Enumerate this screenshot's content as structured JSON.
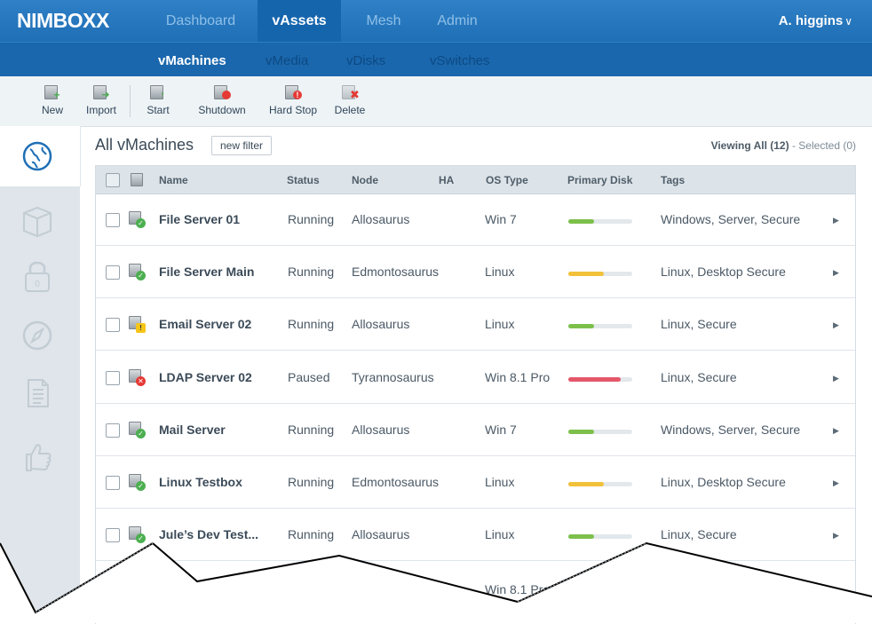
{
  "brand": "NIMBOXX",
  "nav": {
    "tabs": [
      "Dashboard",
      "vAssets",
      "Mesh",
      "Admin"
    ],
    "active": "vAssets",
    "user": "A. higgins"
  },
  "subnav": {
    "tabs": [
      "vMachines",
      "vMedia",
      "vDisks",
      "vSwitches"
    ],
    "active": "vMachines"
  },
  "toolbar": {
    "new": "New",
    "import": "Import",
    "start": "Start",
    "shutdown": "Shutdown",
    "hard_stop": "Hard Stop",
    "delete": "Delete"
  },
  "sidebar": {
    "icons": [
      "globe-icon",
      "box-icon",
      "lock-icon",
      "compass-icon",
      "document-icon",
      "thumbs-up-icon"
    ],
    "lock_counter": "0"
  },
  "content": {
    "title": "All vMachines",
    "filter_button": "new filter",
    "viewing_label": "Viewing All",
    "viewing_count": "(12)",
    "separator": "-",
    "selected": "Selected (0)"
  },
  "table": {
    "headers": [
      "Name",
      "Status",
      "Node",
      "HA",
      "OS Type",
      "Primary Disk",
      "Tags"
    ],
    "rows": [
      {
        "name": "File Server 01",
        "status": "Running",
        "node": "Allosaurus",
        "os": "Win 7",
        "disk": 0.4,
        "disk_color": "#7cc04b",
        "tags": "Windows, Server, Secure",
        "state": "ok"
      },
      {
        "name": "File Server Main",
        "status": "Running",
        "node": "Edmontosaurus",
        "os": "Linux",
        "disk": 0.55,
        "disk_color": "#f2c13a",
        "tags": "Linux, Desktop Secure",
        "state": "ok"
      },
      {
        "name": "Email Server 02",
        "status": "Running",
        "node": "Allosaurus",
        "os": "Linux",
        "disk": 0.4,
        "disk_color": "#7cc04b",
        "tags": "Linux, Secure",
        "state": "warning"
      },
      {
        "name": "LDAP Server 02",
        "status": "Paused",
        "node": "Tyrannosaurus",
        "os": "Win 8.1 Pro",
        "disk": 0.82,
        "disk_color": "#e5576a",
        "tags": "Linux, Secure",
        "state": "error"
      },
      {
        "name": "Mail Server",
        "status": "Running",
        "node": "Allosaurus",
        "os": "Win 7",
        "disk": 0.4,
        "disk_color": "#7cc04b",
        "tags": "Windows, Server, Secure",
        "state": "ok"
      },
      {
        "name": "Linux Testbox",
        "status": "Running",
        "node": "Edmontosaurus",
        "os": "Linux",
        "disk": 0.55,
        "disk_color": "#f2c13a",
        "tags": "Linux, Desktop Secure",
        "state": "ok"
      },
      {
        "name": "Jule’s Dev Test...",
        "status": "Running",
        "node": "Allosaurus",
        "os": "Linux",
        "disk": 0.4,
        "disk_color": "#7cc04b",
        "tags": "Linux, Secure",
        "state": "ok"
      },
      {
        "name": "",
        "status": "",
        "node": "",
        "os": "Win 8.1 Pro",
        "disk": null,
        "disk_color": "",
        "tags": "",
        "state": "partial"
      }
    ]
  },
  "colors": {
    "nav_blue": "#1f6fb6",
    "ok": "#4caf50",
    "warning": "#f5c518",
    "error": "#e53935"
  }
}
